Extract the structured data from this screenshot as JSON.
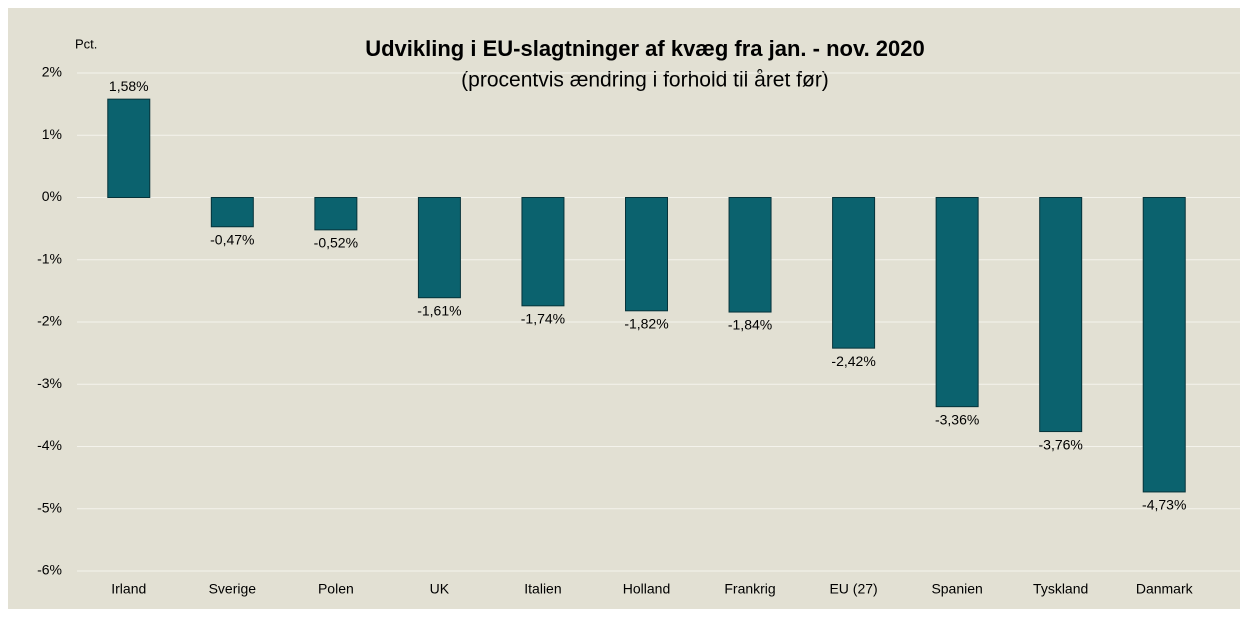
{
  "chart_data": {
    "type": "bar",
    "title": "Udvikling i EU-slagtninger af kvæg fra jan. - nov. 2020",
    "subtitle": "(procentvis ændring i forhold til året før)",
    "y_label": "Pct.",
    "categories": [
      "Irland",
      "Sverige",
      "Polen",
      "UK",
      "Italien",
      "Holland",
      "Frankrig",
      "EU (27)",
      "Spanien",
      "Tyskland",
      "Danmark"
    ],
    "values": [
      1.58,
      -0.47,
      -0.52,
      -1.61,
      -1.74,
      -1.82,
      -1.84,
      -2.42,
      -3.36,
      -3.76,
      -4.73
    ],
    "value_labels": [
      "1,58%",
      "-0,47%",
      "-0,52%",
      "-1,61%",
      "-1,74%",
      "-1,82%",
      "-1,84%",
      "-2,42%",
      "-3,36%",
      "-3,76%",
      "-4,73%"
    ],
    "color": "#0b626e",
    "ylim": [
      -6,
      2
    ],
    "yticks": [
      {
        "value": -6,
        "label": "-6%"
      },
      {
        "value": -5,
        "label": "-5%"
      },
      {
        "value": -4,
        "label": "-4%"
      },
      {
        "value": -3,
        "label": "-3%"
      },
      {
        "value": -2,
        "label": "-2%"
      },
      {
        "value": -1,
        "label": "-1%"
      },
      {
        "value": 0,
        "label": "0%"
      },
      {
        "value": 1,
        "label": "1%"
      },
      {
        "value": 2,
        "label": "2%"
      }
    ],
    "grid": true
  }
}
